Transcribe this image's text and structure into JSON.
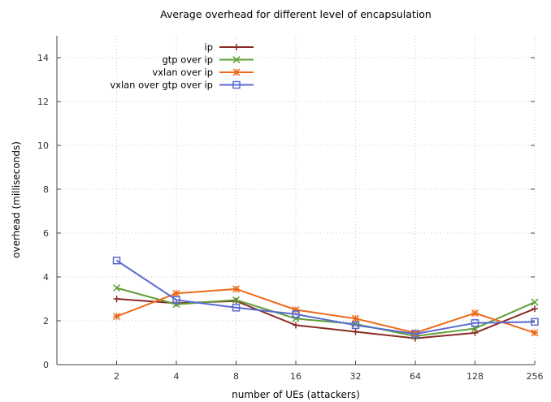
{
  "chart_data": {
    "type": "line",
    "title": "Average overhead for different level of encapsulation",
    "xlabel": "number of UEs (attackers)",
    "ylabel": "overhead (milliseconds)",
    "categories": [
      "2",
      "4",
      "8",
      "16",
      "32",
      "64",
      "128",
      "256"
    ],
    "yticks": [
      "0",
      "2",
      "4",
      "6",
      "8",
      "10",
      "12",
      "14"
    ],
    "ylim": [
      0,
      15
    ],
    "grid": true,
    "legend_position": "top-left",
    "series": [
      {
        "name": "ip",
        "color": "#8b2b24",
        "marker": "plus",
        "values": [
          3.0,
          2.8,
          2.9,
          1.8,
          1.5,
          1.2,
          1.45,
          2.55
        ]
      },
      {
        "name": "gtp over ip",
        "color": "#5f9e34",
        "marker": "x",
        "values": [
          3.5,
          2.75,
          2.95,
          2.1,
          1.85,
          1.3,
          1.65,
          2.85
        ]
      },
      {
        "name": "vxlan over ip",
        "color": "#ee6a18",
        "marker": "star",
        "values": [
          2.2,
          3.25,
          3.45,
          2.5,
          2.1,
          1.45,
          2.35,
          1.45
        ]
      },
      {
        "name": "vxlan over gtp over ip",
        "color": "#5a6ad1",
        "marker": "square",
        "values": [
          4.75,
          2.95,
          2.6,
          2.3,
          1.8,
          1.4,
          1.9,
          1.95
        ]
      }
    ]
  }
}
